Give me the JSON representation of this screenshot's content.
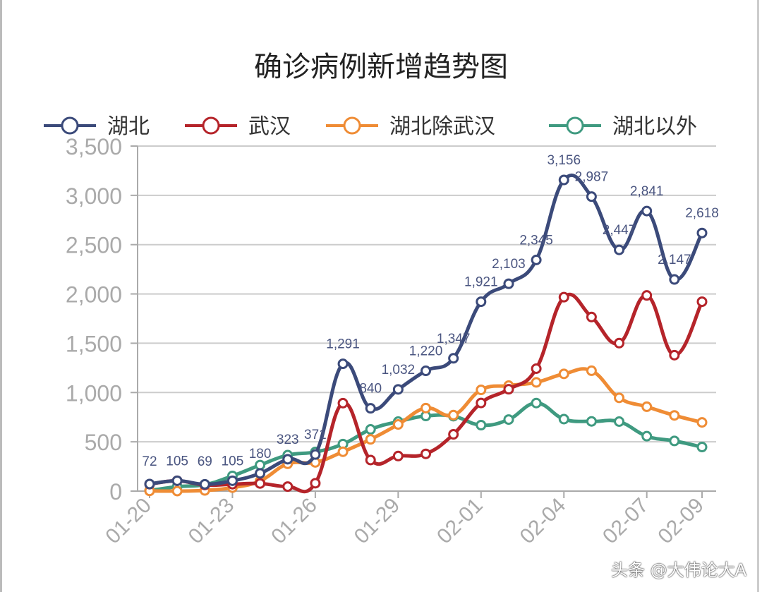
{
  "chart_data": {
    "type": "line",
    "title": "确诊病例新增趋势图",
    "x": [
      "01-20",
      "01-21",
      "01-22",
      "01-23",
      "01-24",
      "01-25",
      "01-26",
      "01-27",
      "01-28",
      "01-29",
      "01-30",
      "01-31",
      "02-01",
      "02-02",
      "02-03",
      "02-04",
      "02-05",
      "02-06",
      "02-07",
      "02-08",
      "02-09"
    ],
    "x_tick_labels": [
      "01-20",
      "01-23",
      "01-26",
      "01-29",
      "02-01",
      "02-04",
      "02-07",
      "02-09"
    ],
    "y_ticks": [
      "0",
      "500",
      "1,000",
      "1,500",
      "2,000",
      "2,500",
      "3,000",
      "3,500"
    ],
    "ylim": [
      0,
      3500
    ],
    "grid": true,
    "legend_position": "top",
    "series": [
      {
        "name": "湖北",
        "color": "#3b4a7a",
        "data_labels": true,
        "values": [
          72,
          105,
          69,
          105,
          180,
          323,
          371,
          1291,
          840,
          1032,
          1220,
          1347,
          1921,
          2103,
          2345,
          3156,
          2987,
          2447,
          2841,
          2147,
          2618
        ]
      },
      {
        "name": "武汉",
        "color": "#b5242a",
        "values": [
          70,
          105,
          62,
          70,
          77,
          46,
          80,
          892,
          315,
          356,
          378,
          576,
          894,
          1033,
          1242,
          1967,
          1766,
          1501,
          1985,
          1379,
          1921
        ]
      },
      {
        "name": "湖北除武汉",
        "color": "#ef8c35",
        "values": [
          2,
          0,
          7,
          35,
          103,
          277,
          291,
          399,
          525,
          676,
          842,
          771,
          1027,
          1070,
          1103,
          1189,
          1221,
          946,
          856,
          768,
          697
        ]
      },
      {
        "name": "湖北以外",
        "color": "#3f9a80",
        "values": [
          5,
          45,
          65,
          154,
          264,
          365,
          397,
          477,
          626,
          705,
          762,
          760,
          669,
          726,
          893,
          730,
          707,
          705,
          557,
          509,
          447
        ]
      }
    ]
  },
  "watermark": "头条 @大伟论大A"
}
